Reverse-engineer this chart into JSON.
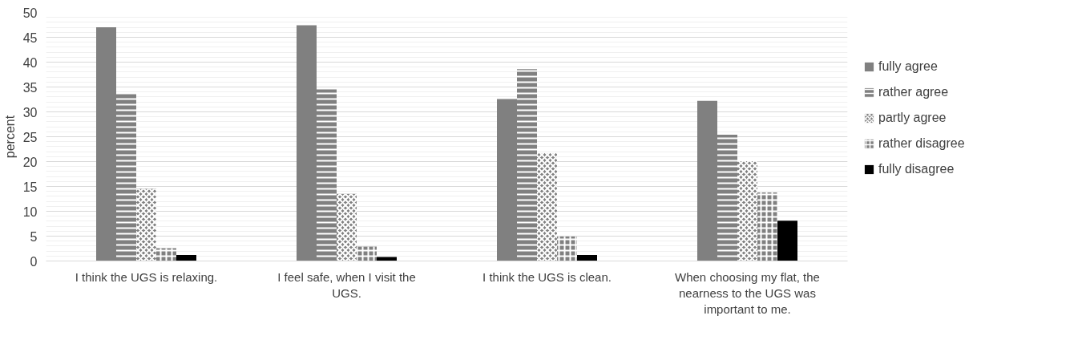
{
  "chart_data": {
    "type": "bar",
    "ylabel": "percent",
    "categories": [
      "I think the UGS is relaxing.",
      "I feel safe, when I visit the UGS.",
      "I think the UGS is clean.",
      "When choosing my flat, the nearness to the UGS was important to me."
    ],
    "series": [
      {
        "name": "fully agree",
        "color": "#808080",
        "values": [
          47.0,
          47.4,
          32.6,
          32.2
        ]
      },
      {
        "name": "rather agree",
        "color": "#808080",
        "values": [
          33.8,
          34.5,
          38.6,
          25.4
        ]
      },
      {
        "name": "partly agree",
        "color": "#808080",
        "values": [
          14.5,
          13.5,
          21.7,
          20.1
        ]
      },
      {
        "name": "rather disagree",
        "color": "#808080",
        "values": [
          2.6,
          2.9,
          4.9,
          13.8
        ]
      },
      {
        "name": "fully disagree",
        "color": "#000000",
        "values": [
          1.2,
          0.8,
          1.2,
          8.1
        ]
      }
    ],
    "ylim": [
      0,
      50
    ],
    "yticks": [
      0,
      5,
      10,
      15,
      20,
      25,
      30,
      35,
      40,
      45,
      50
    ],
    "grid": "y",
    "legend": "right"
  }
}
